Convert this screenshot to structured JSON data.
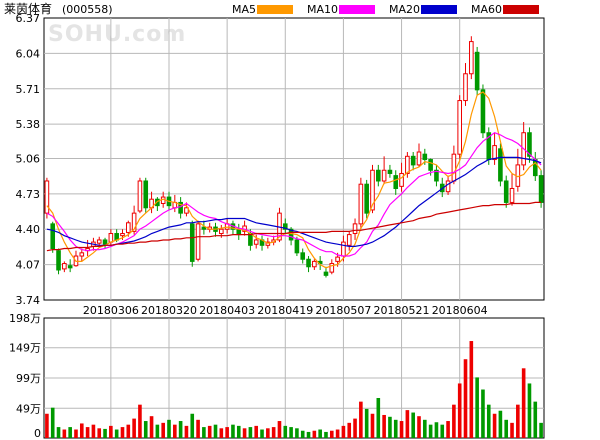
{
  "stock": {
    "name": "莱茵体育",
    "code": "(000558)"
  },
  "watermark": "SOHU.com",
  "legend": [
    {
      "label": "MA5",
      "color": "#ff9900"
    },
    {
      "label": "MA10",
      "color": "#ff00ff"
    },
    {
      "label": "MA20",
      "color": "#0000cc"
    },
    {
      "label": "MA60",
      "color": "#cc0000"
    }
  ],
  "colors": {
    "up": "#ee0000",
    "down": "#009900",
    "grid": "#b8b8b8",
    "axis": "#000000"
  },
  "chart_data": [
    {
      "type": "candlestick",
      "title": "莱茵体育(000558)",
      "y_ticks": [
        "3.74",
        "4.07",
        "4.40",
        "4.73",
        "5.06",
        "5.38",
        "5.71",
        "6.04",
        "6.37"
      ],
      "ylim": [
        3.74,
        6.37
      ],
      "x_ticks": [
        {
          "label": "20180306",
          "index": 11
        },
        {
          "label": "20180320",
          "index": 21
        },
        {
          "label": "20180403",
          "index": 31
        },
        {
          "label": "20180419",
          "index": 41
        },
        {
          "label": "20180507",
          "index": 51
        },
        {
          "label": "20180521",
          "index": 61
        },
        {
          "label": "20180604",
          "index": 71
        }
      ],
      "candles": [
        [
          4.55,
          4.85,
          4.5,
          4.88
        ],
        [
          4.45,
          4.22,
          4.18,
          4.47
        ],
        [
          4.2,
          4.02,
          3.98,
          4.22
        ],
        [
          4.03,
          4.08,
          4.0,
          4.1
        ],
        [
          4.06,
          4.04,
          4.0,
          4.12
        ],
        [
          4.06,
          4.15,
          4.05,
          4.2
        ],
        [
          4.15,
          4.18,
          4.1,
          4.22
        ],
        [
          4.2,
          4.22,
          4.15,
          4.3
        ],
        [
          4.24,
          4.28,
          4.2,
          4.32
        ],
        [
          4.27,
          4.3,
          4.25,
          4.33
        ],
        [
          4.3,
          4.26,
          4.22,
          4.32
        ],
        [
          4.28,
          4.36,
          4.25,
          4.4
        ],
        [
          4.36,
          4.3,
          4.28,
          4.4
        ],
        [
          4.34,
          4.36,
          4.3,
          4.4
        ],
        [
          4.37,
          4.46,
          4.33,
          4.48
        ],
        [
          4.38,
          4.55,
          4.35,
          4.62
        ],
        [
          4.57,
          4.85,
          4.55,
          4.88
        ],
        [
          4.85,
          4.6,
          4.55,
          4.88
        ],
        [
          4.6,
          4.68,
          4.55,
          4.75
        ],
        [
          4.68,
          4.62,
          4.57,
          4.7
        ],
        [
          4.64,
          4.7,
          4.6,
          4.75
        ],
        [
          4.7,
          4.62,
          4.58,
          4.75
        ],
        [
          4.6,
          4.65,
          4.56,
          4.72
        ],
        [
          4.65,
          4.55,
          4.5,
          4.7
        ],
        [
          4.55,
          4.6,
          4.52,
          4.65
        ],
        [
          4.45,
          4.1,
          4.05,
          4.48
        ],
        [
          4.12,
          4.45,
          4.1,
          4.48
        ],
        [
          4.42,
          4.4,
          4.35,
          4.48
        ],
        [
          4.4,
          4.42,
          4.37,
          4.46
        ],
        [
          4.42,
          4.38,
          4.33,
          4.46
        ],
        [
          4.36,
          4.4,
          4.32,
          4.44
        ],
        [
          4.4,
          4.45,
          4.36,
          4.5
        ],
        [
          4.45,
          4.4,
          4.35,
          4.48
        ],
        [
          4.4,
          4.35,
          4.3,
          4.45
        ],
        [
          4.38,
          4.43,
          4.34,
          4.48
        ],
        [
          4.36,
          4.25,
          4.2,
          4.4
        ],
        [
          4.26,
          4.3,
          4.22,
          4.35
        ],
        [
          4.3,
          4.25,
          4.2,
          4.34
        ],
        [
          4.25,
          4.28,
          4.22,
          4.32
        ],
        [
          4.28,
          4.3,
          4.25,
          4.34
        ],
        [
          4.3,
          4.55,
          4.28,
          4.6
        ],
        [
          4.45,
          4.4,
          4.36,
          4.5
        ],
        [
          4.4,
          4.3,
          4.25,
          4.42
        ],
        [
          4.3,
          4.18,
          4.15,
          4.33
        ],
        [
          4.18,
          4.12,
          4.08,
          4.22
        ],
        [
          4.12,
          4.05,
          4.0,
          4.15
        ],
        [
          4.05,
          4.1,
          4.02,
          4.12
        ],
        [
          4.1,
          4.08,
          4.02,
          4.15
        ],
        [
          4.0,
          3.97,
          3.95,
          4.05
        ],
        [
          4.0,
          4.08,
          3.98,
          4.12
        ],
        [
          4.1,
          4.14,
          4.05,
          4.18
        ],
        [
          4.15,
          4.28,
          4.1,
          4.34
        ],
        [
          4.25,
          4.35,
          4.2,
          4.38
        ],
        [
          4.36,
          4.45,
          4.3,
          4.5
        ],
        [
          4.45,
          4.82,
          4.4,
          4.88
        ],
        [
          4.82,
          4.55,
          4.5,
          4.86
        ],
        [
          4.58,
          4.95,
          4.55,
          5.0
        ],
        [
          4.95,
          4.85,
          4.8,
          5.0
        ],
        [
          4.85,
          4.95,
          4.82,
          5.08
        ],
        [
          4.95,
          4.92,
          4.88,
          5.0
        ],
        [
          4.9,
          4.78,
          4.72,
          4.95
        ],
        [
          4.8,
          4.92,
          4.75,
          5.02
        ],
        [
          4.92,
          5.08,
          4.88,
          5.12
        ],
        [
          5.08,
          5.0,
          4.95,
          5.12
        ],
        [
          5.0,
          5.12,
          4.98,
          5.2
        ],
        [
          5.1,
          5.05,
          5.0,
          5.15
        ],
        [
          5.05,
          4.95,
          4.9,
          5.06
        ],
        [
          4.95,
          4.85,
          4.8,
          5.0
        ],
        [
          4.82,
          4.75,
          4.7,
          4.88
        ],
        [
          4.75,
          4.85,
          4.72,
          4.9
        ],
        [
          4.85,
          5.1,
          4.82,
          5.18
        ],
        [
          5.1,
          5.6,
          5.05,
          5.65
        ],
        [
          5.6,
          5.85,
          5.55,
          5.95
        ],
        [
          5.85,
          6.15,
          5.8,
          6.2
        ],
        [
          6.05,
          5.7,
          5.65,
          6.1
        ],
        [
          5.7,
          5.3,
          5.25,
          5.75
        ],
        [
          5.3,
          5.05,
          5.0,
          5.35
        ],
        [
          5.05,
          5.18,
          5.0,
          5.3
        ],
        [
          5.15,
          4.85,
          4.8,
          5.2
        ],
        [
          4.85,
          4.65,
          4.6,
          4.9
        ],
        [
          4.65,
          4.78,
          4.62,
          4.92
        ],
        [
          4.8,
          5.0,
          4.75,
          5.15
        ],
        [
          5.0,
          5.3,
          4.95,
          5.4
        ],
        [
          5.3,
          5.08,
          5.02,
          5.35
        ],
        [
          5.05,
          4.9,
          4.85,
          5.12
        ],
        [
          4.9,
          4.65,
          4.6,
          4.95
        ]
      ],
      "series": [
        {
          "name": "MA5",
          "values": [
            4.62,
            4.55,
            4.4,
            4.28,
            4.18,
            4.1,
            4.1,
            4.14,
            4.18,
            4.23,
            4.25,
            4.28,
            4.3,
            4.32,
            4.35,
            4.4,
            4.5,
            4.55,
            4.6,
            4.66,
            4.68,
            4.66,
            4.65,
            4.63,
            4.62,
            4.52,
            4.47,
            4.43,
            4.4,
            4.4,
            4.41,
            4.42,
            4.41,
            4.4,
            4.39,
            4.36,
            4.32,
            4.3,
            4.27,
            4.28,
            4.33,
            4.36,
            4.36,
            4.35,
            4.32,
            4.21,
            4.13,
            4.07,
            4.04,
            4.06,
            4.07,
            4.13,
            4.18,
            4.26,
            4.41,
            4.49,
            4.63,
            4.71,
            4.83,
            4.84,
            4.86,
            4.88,
            4.93,
            4.96,
            4.98,
            5.03,
            5.02,
            5.0,
            4.94,
            4.89,
            4.92,
            5.04,
            5.22,
            5.47,
            5.65,
            5.68,
            5.62,
            5.45,
            5.22,
            4.99,
            4.92,
            4.89,
            4.91,
            4.98,
            5.02,
            4.95
          ]
        },
        {
          "name": "MA10",
          "values": [
            4.55,
            4.52,
            4.45,
            4.38,
            4.3,
            4.24,
            4.21,
            4.2,
            4.21,
            4.21,
            4.22,
            4.24,
            4.26,
            4.28,
            4.31,
            4.34,
            4.4,
            4.43,
            4.47,
            4.51,
            4.55,
            4.58,
            4.6,
            4.61,
            4.64,
            4.6,
            4.56,
            4.53,
            4.51,
            4.5,
            4.47,
            4.45,
            4.43,
            4.41,
            4.4,
            4.38,
            4.36,
            4.35,
            4.34,
            4.33,
            4.34,
            4.34,
            4.33,
            4.31,
            4.3,
            4.27,
            4.24,
            4.21,
            4.19,
            4.19,
            4.16,
            4.15,
            4.15,
            4.17,
            4.23,
            4.28,
            4.38,
            4.44,
            4.54,
            4.63,
            4.68,
            4.73,
            4.79,
            4.84,
            4.89,
            4.91,
            4.93,
            4.94,
            4.93,
            4.92,
            4.93,
            4.96,
            5.0,
            5.08,
            5.16,
            5.22,
            5.26,
            5.3,
            5.28,
            5.25,
            5.23,
            5.2,
            5.15,
            5.1,
            5.05,
            5.0
          ]
        },
        {
          "name": "MA20",
          "values": [
            4.4,
            4.39,
            4.37,
            4.34,
            4.32,
            4.3,
            4.28,
            4.27,
            4.26,
            4.25,
            4.25,
            4.25,
            4.26,
            4.27,
            4.28,
            4.29,
            4.31,
            4.33,
            4.36,
            4.38,
            4.4,
            4.42,
            4.43,
            4.44,
            4.46,
            4.46,
            4.47,
            4.47,
            4.48,
            4.49,
            4.49,
            4.5,
            4.5,
            4.5,
            4.5,
            4.48,
            4.46,
            4.45,
            4.44,
            4.43,
            4.42,
            4.41,
            4.39,
            4.38,
            4.36,
            4.34,
            4.32,
            4.3,
            4.28,
            4.27,
            4.26,
            4.25,
            4.24,
            4.24,
            4.25,
            4.26,
            4.28,
            4.31,
            4.34,
            4.38,
            4.42,
            4.47,
            4.52,
            4.57,
            4.62,
            4.66,
            4.7,
            4.74,
            4.78,
            4.82,
            4.85,
            4.88,
            4.91,
            4.95,
            4.99,
            5.02,
            5.05,
            5.06,
            5.07,
            5.07,
            5.07,
            5.07,
            5.06,
            5.05,
            5.04,
            5.02
          ]
        },
        {
          "name": "MA60",
          "values": [
            4.2,
            4.21,
            4.21,
            4.22,
            4.22,
            4.23,
            4.23,
            4.23,
            4.24,
            4.24,
            4.25,
            4.25,
            4.26,
            4.26,
            4.27,
            4.27,
            4.28,
            4.28,
            4.29,
            4.29,
            4.3,
            4.3,
            4.31,
            4.31,
            4.32,
            4.32,
            4.33,
            4.33,
            4.33,
            4.34,
            4.34,
            4.34,
            4.35,
            4.35,
            4.35,
            4.35,
            4.36,
            4.36,
            4.36,
            4.36,
            4.36,
            4.36,
            4.37,
            4.37,
            4.37,
            4.37,
            4.37,
            4.37,
            4.37,
            4.38,
            4.38,
            4.38,
            4.38,
            4.39,
            4.39,
            4.4,
            4.41,
            4.42,
            4.43,
            4.44,
            4.45,
            4.46,
            4.47,
            4.48,
            4.5,
            4.51,
            4.52,
            4.54,
            4.55,
            4.56,
            4.57,
            4.58,
            4.59,
            4.6,
            4.61,
            4.62,
            4.62,
            4.63,
            4.63,
            4.63,
            4.64,
            4.64,
            4.64,
            4.64,
            4.65,
            4.65
          ]
        }
      ]
    },
    {
      "type": "bar",
      "title": "volume",
      "y_ticks": [
        "198万",
        "149万",
        "99万",
        "49万",
        "0"
      ],
      "ylim": [
        0,
        198
      ],
      "unit": "万",
      "values": [
        40,
        50,
        18,
        14,
        18,
        14,
        24,
        18,
        22,
        16,
        15,
        20,
        14,
        18,
        22,
        32,
        55,
        28,
        36,
        22,
        25,
        30,
        22,
        28,
        20,
        40,
        30,
        18,
        20,
        22,
        16,
        18,
        22,
        20,
        16,
        18,
        20,
        14,
        16,
        18,
        28,
        20,
        18,
        16,
        12,
        10,
        12,
        14,
        10,
        12,
        14,
        20,
        25,
        32,
        60,
        48,
        40,
        66,
        38,
        35,
        30,
        28,
        46,
        42,
        36,
        30,
        22,
        26,
        22,
        28,
        55,
        90,
        130,
        160,
        100,
        80,
        55,
        40,
        45,
        30,
        25,
        55,
        115,
        90,
        60,
        25
      ]
    }
  ]
}
